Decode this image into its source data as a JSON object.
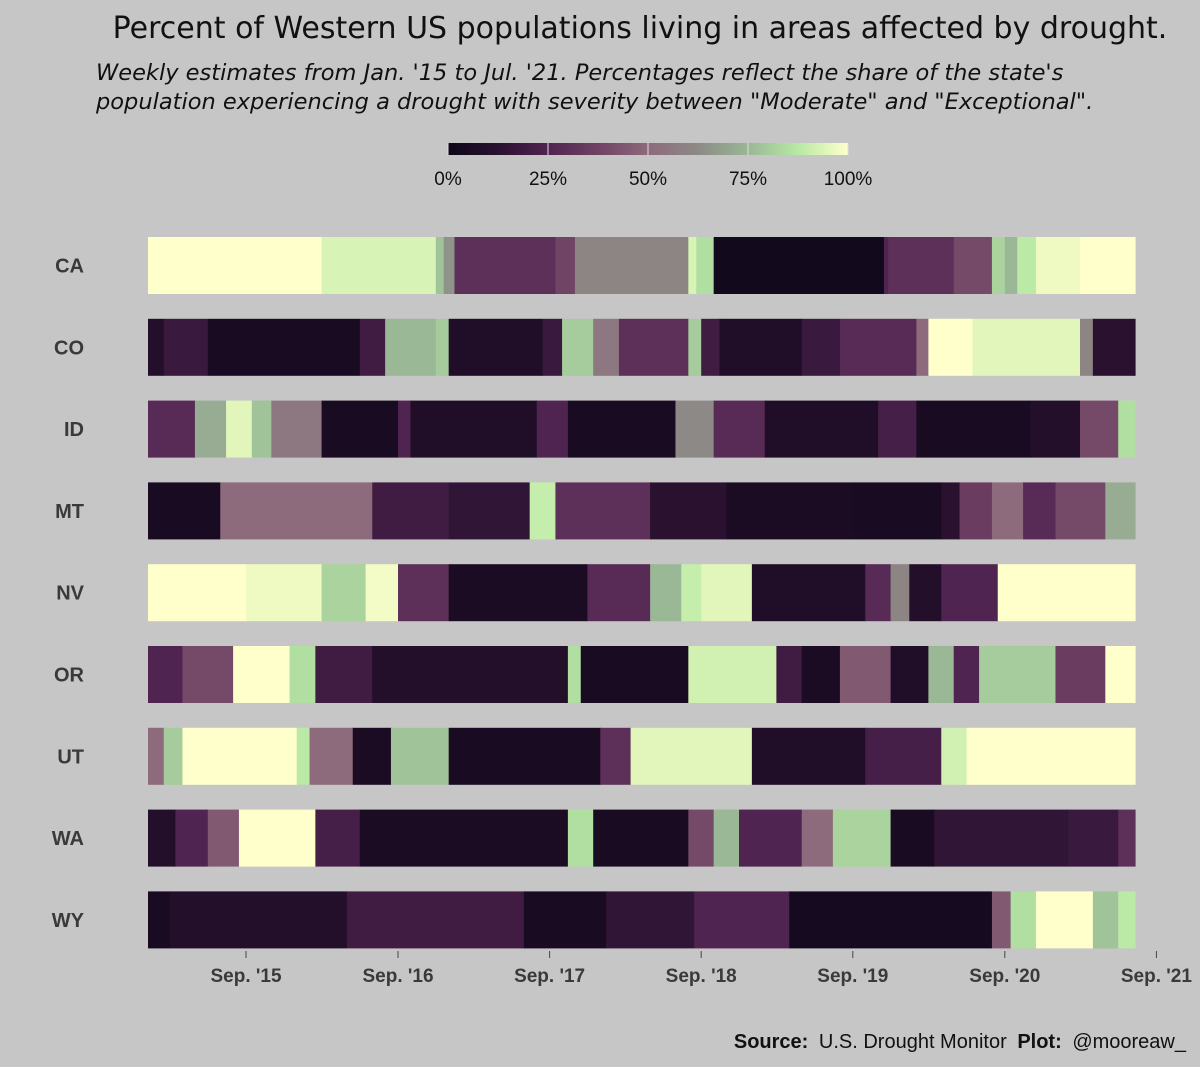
{
  "chart_data": {
    "type": "heatmap",
    "title": "Percent of Western US populations living in areas affected by drought.",
    "subtitle_lines": [
      "Weekly estimates from Jan. '15 to Jul. '21. Percentages reflect the share of the state's",
      "population experiencing a drought with severity between \"Moderate\" and \"Exceptional\"."
    ],
    "legend": {
      "tick_values": [
        0,
        25,
        50,
        75,
        100
      ],
      "tick_labels": [
        "0%",
        "25%",
        "50%",
        "75%",
        "100%"
      ],
      "colors": [
        "#0d0718",
        "#2a1130",
        "#4f2450",
        "#6f4264",
        "#8d6a7c",
        "#8d8a86",
        "#9ab796",
        "#b7e9a4",
        "#ffffcc"
      ]
    },
    "x_axis": {
      "date_range": [
        "2015-01-01",
        "2021-07-31"
      ],
      "ticks": [
        {
          "date": "2015-09-01",
          "label": "Sep. '15"
        },
        {
          "date": "2016-09-01",
          "label": "Sep. '16"
        },
        {
          "date": "2017-09-01",
          "label": "Sep. '17"
        },
        {
          "date": "2018-09-01",
          "label": "Sep. '18"
        },
        {
          "date": "2019-09-01",
          "label": "Sep. '19"
        },
        {
          "date": "2020-09-01",
          "label": "Sep. '20"
        },
        {
          "date": "2021-09-01",
          "label": "Sep. '21"
        }
      ]
    },
    "series": [
      {
        "name": "CA",
        "segments": [
          [
            "2015-01-01",
            100
          ],
          [
            "2016-03-01",
            93
          ],
          [
            "2016-12-01",
            78
          ],
          [
            "2016-12-20",
            65
          ],
          [
            "2017-01-15",
            30
          ],
          [
            "2017-09-15",
            38
          ],
          [
            "2017-11-01",
            60
          ],
          [
            "2018-08-01",
            93
          ],
          [
            "2018-08-20",
            85
          ],
          [
            "2018-10-01",
            2
          ],
          [
            "2019-11-15",
            25
          ],
          [
            "2019-11-25",
            30
          ],
          [
            "2020-05-01",
            40
          ],
          [
            "2020-08-01",
            82
          ],
          [
            "2020-09-01",
            75
          ],
          [
            "2020-10-01",
            88
          ],
          [
            "2020-11-15",
            97
          ],
          [
            "2021-03-01",
            100
          ]
        ]
      },
      {
        "name": "CO",
        "segments": [
          [
            "2015-01-01",
            10
          ],
          [
            "2015-02-15",
            18
          ],
          [
            "2015-06-01",
            5
          ],
          [
            "2016-06-01",
            20
          ],
          [
            "2016-08-01",
            75
          ],
          [
            "2016-12-01",
            80
          ],
          [
            "2017-01-01",
            8
          ],
          [
            "2017-08-15",
            18
          ],
          [
            "2017-10-01",
            80
          ],
          [
            "2017-12-15",
            55
          ],
          [
            "2018-02-15",
            30
          ],
          [
            "2018-08-01",
            80
          ],
          [
            "2018-09-01",
            20
          ],
          [
            "2018-10-15",
            8
          ],
          [
            "2019-05-01",
            18
          ],
          [
            "2019-08-01",
            28
          ],
          [
            "2020-02-01",
            50
          ],
          [
            "2020-03-01",
            100
          ],
          [
            "2020-06-15",
            95
          ],
          [
            "2021-03-01",
            60
          ],
          [
            "2021-04-01",
            12
          ]
        ]
      },
      {
        "name": "ID",
        "segments": [
          [
            "2015-01-01",
            28
          ],
          [
            "2015-05-01",
            72
          ],
          [
            "2015-07-15",
            95
          ],
          [
            "2015-09-15",
            78
          ],
          [
            "2015-11-01",
            55
          ],
          [
            "2016-03-01",
            5
          ],
          [
            "2016-09-01",
            25
          ],
          [
            "2016-10-01",
            8
          ],
          [
            "2017-08-01",
            25
          ],
          [
            "2017-10-15",
            5
          ],
          [
            "2018-07-01",
            62
          ],
          [
            "2018-10-01",
            28
          ],
          [
            "2019-02-01",
            8
          ],
          [
            "2019-11-01",
            22
          ],
          [
            "2020-02-01",
            5
          ],
          [
            "2020-11-01",
            10
          ],
          [
            "2021-03-01",
            40
          ],
          [
            "2021-06-01",
            85
          ]
        ]
      },
      {
        "name": "MT",
        "segments": [
          [
            "2015-01-01",
            5
          ],
          [
            "2015-07-01",
            50
          ],
          [
            "2016-07-01",
            20
          ],
          [
            "2017-01-01",
            15
          ],
          [
            "2017-07-15",
            90
          ],
          [
            "2017-09-15",
            30
          ],
          [
            "2018-05-01",
            12
          ],
          [
            "2018-11-01",
            6
          ],
          [
            "2019-09-01",
            5
          ],
          [
            "2020-04-01",
            12
          ],
          [
            "2020-05-15",
            35
          ],
          [
            "2020-08-01",
            50
          ],
          [
            "2020-10-15",
            28
          ],
          [
            "2021-01-01",
            40
          ],
          [
            "2021-05-01",
            72
          ]
        ]
      },
      {
        "name": "NV",
        "segments": [
          [
            "2015-01-01",
            100
          ],
          [
            "2015-09-01",
            97
          ],
          [
            "2016-03-01",
            82
          ],
          [
            "2016-06-15",
            98
          ],
          [
            "2016-09-01",
            30
          ],
          [
            "2017-01-01",
            6
          ],
          [
            "2017-12-01",
            28
          ],
          [
            "2018-05-01",
            75
          ],
          [
            "2018-07-15",
            90
          ],
          [
            "2018-09-01",
            95
          ],
          [
            "2019-01-01",
            8
          ],
          [
            "2019-10-01",
            28
          ],
          [
            "2019-12-01",
            60
          ],
          [
            "2020-01-15",
            10
          ],
          [
            "2020-04-01",
            25
          ],
          [
            "2020-08-15",
            100
          ]
        ]
      },
      {
        "name": "OR",
        "segments": [
          [
            "2015-01-01",
            25
          ],
          [
            "2015-04-01",
            40
          ],
          [
            "2015-08-01",
            100
          ],
          [
            "2015-12-15",
            85
          ],
          [
            "2016-02-15",
            20
          ],
          [
            "2016-07-01",
            10
          ],
          [
            "2017-10-15",
            85
          ],
          [
            "2017-11-15",
            5
          ],
          [
            "2018-08-01",
            92
          ],
          [
            "2019-03-01",
            20
          ],
          [
            "2019-05-01",
            6
          ],
          [
            "2019-08-01",
            45
          ],
          [
            "2019-12-01",
            8
          ],
          [
            "2020-03-01",
            75
          ],
          [
            "2020-05-01",
            25
          ],
          [
            "2020-07-01",
            80
          ],
          [
            "2021-01-01",
            35
          ],
          [
            "2021-05-01",
            100
          ]
        ]
      },
      {
        "name": "UT",
        "segments": [
          [
            "2015-01-01",
            50
          ],
          [
            "2015-02-15",
            80
          ],
          [
            "2015-04-01",
            100
          ],
          [
            "2016-01-01",
            88
          ],
          [
            "2016-02-01",
            50
          ],
          [
            "2016-05-15",
            6
          ],
          [
            "2016-08-15",
            78
          ],
          [
            "2017-01-01",
            5
          ],
          [
            "2018-01-01",
            30
          ],
          [
            "2018-03-15",
            95
          ],
          [
            "2019-01-01",
            8
          ],
          [
            "2019-10-01",
            22
          ],
          [
            "2020-04-01",
            92
          ],
          [
            "2020-06-01",
            100
          ]
        ]
      },
      {
        "name": "WA",
        "segments": [
          [
            "2015-01-01",
            10
          ],
          [
            "2015-03-15",
            25
          ],
          [
            "2015-06-01",
            45
          ],
          [
            "2015-08-15",
            100
          ],
          [
            "2016-02-15",
            22
          ],
          [
            "2016-06-01",
            6
          ],
          [
            "2017-10-15",
            85
          ],
          [
            "2017-12-15",
            5
          ],
          [
            "2018-08-01",
            40
          ],
          [
            "2018-10-01",
            75
          ],
          [
            "2018-12-01",
            25
          ],
          [
            "2019-05-01",
            50
          ],
          [
            "2019-07-15",
            82
          ],
          [
            "2019-12-01",
            5
          ],
          [
            "2020-03-15",
            15
          ],
          [
            "2021-02-01",
            18
          ],
          [
            "2021-06-01",
            30
          ]
        ]
      },
      {
        "name": "WY",
        "segments": [
          [
            "2015-01-01",
            5
          ],
          [
            "2015-03-01",
            10
          ],
          [
            "2016-05-01",
            20
          ],
          [
            "2017-07-01",
            5
          ],
          [
            "2018-01-15",
            15
          ],
          [
            "2018-08-15",
            25
          ],
          [
            "2019-04-01",
            4
          ],
          [
            "2020-08-01",
            45
          ],
          [
            "2020-09-15",
            85
          ],
          [
            "2020-11-15",
            100
          ],
          [
            "2021-04-01",
            78
          ],
          [
            "2021-06-01",
            88
          ]
        ]
      }
    ]
  },
  "source": {
    "source_label": "Source:",
    "source_text": "U.S. Drought Monitor",
    "plot_label": "Plot:",
    "plot_text": "@mooreaw_"
  }
}
